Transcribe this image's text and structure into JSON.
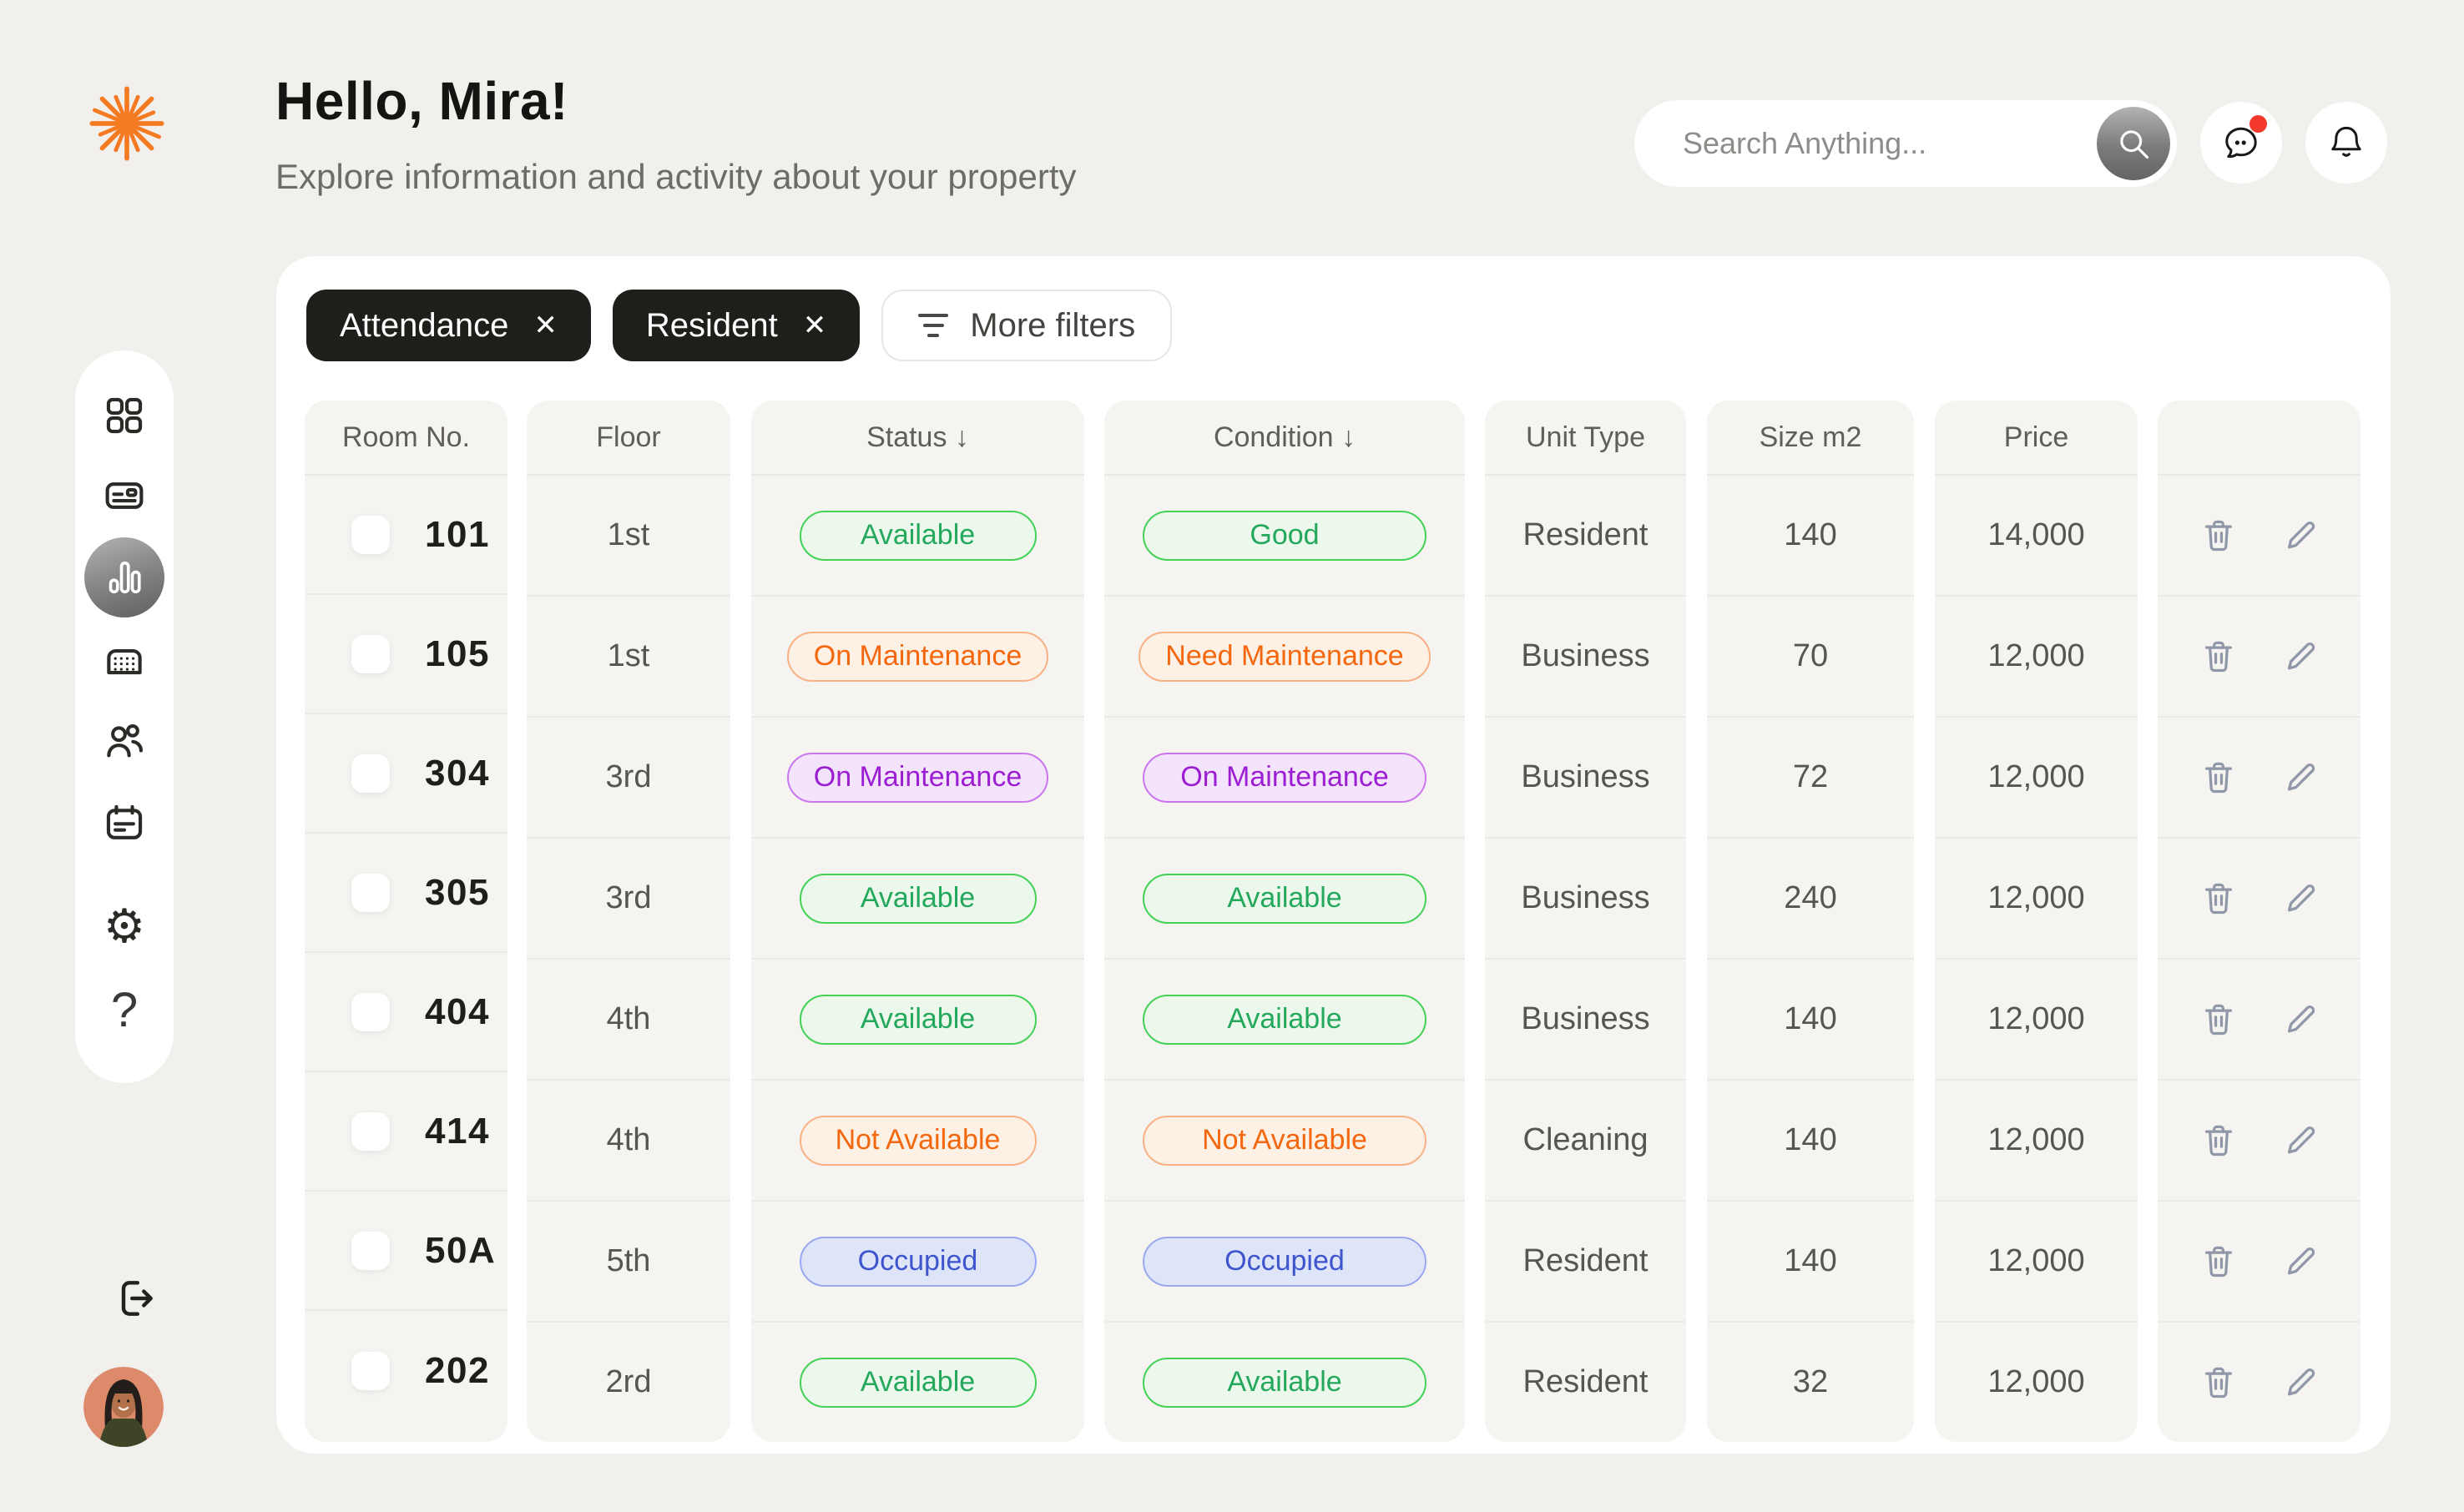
{
  "header": {
    "greeting": "Hello, Mira!",
    "subtitle": "Explore information and activity about your property",
    "search_placeholder": "Search Anything..."
  },
  "filters": {
    "chips": [
      {
        "label": "Attendance"
      },
      {
        "label": "Resident"
      }
    ],
    "more_filters_label": "More filters"
  },
  "icons": {
    "close": "✕",
    "gear": "⚙",
    "help": "?"
  },
  "table": {
    "sort_glyph": "↓",
    "headers": [
      {
        "label": "Room No.",
        "sorted": false
      },
      {
        "label": "Floor",
        "sorted": false
      },
      {
        "label": "Status",
        "sorted": true
      },
      {
        "label": "Condition",
        "sorted": true
      },
      {
        "label": "Unit Type",
        "sorted": false
      },
      {
        "label": "Size m2",
        "sorted": false
      },
      {
        "label": "Price",
        "sorted": false
      },
      {
        "label": "",
        "sorted": false
      }
    ],
    "row_actions": [
      {
        "icon": "trash-icon"
      },
      {
        "icon": "pencil-icon"
      }
    ],
    "rows": [
      {
        "room": "101",
        "floor": "1st",
        "status": {
          "label": "Available",
          "color": "green"
        },
        "condition": {
          "label": "Good",
          "color": "green"
        },
        "unit_type": "Resident",
        "size": "140",
        "price": "14,000"
      },
      {
        "room": "105",
        "floor": "1st",
        "status": {
          "label": "On Maintenance",
          "color": "orange"
        },
        "condition": {
          "label": "Need Maintenance",
          "color": "orange"
        },
        "unit_type": "Business",
        "size": "70",
        "price": "12,000"
      },
      {
        "room": "304",
        "floor": "3rd",
        "status": {
          "label": "On Maintenance",
          "color": "purple"
        },
        "condition": {
          "label": "On Maintenance",
          "color": "purple"
        },
        "unit_type": "Business",
        "size": "72",
        "price": "12,000"
      },
      {
        "room": "305",
        "floor": "3rd",
        "status": {
          "label": "Available",
          "color": "green"
        },
        "condition": {
          "label": "Available",
          "color": "green"
        },
        "unit_type": "Business",
        "size": "240",
        "price": "12,000"
      },
      {
        "room": "404",
        "floor": "4th",
        "status": {
          "label": "Available",
          "color": "green"
        },
        "condition": {
          "label": "Available",
          "color": "green"
        },
        "unit_type": "Business",
        "size": "140",
        "price": "12,000"
      },
      {
        "room": "414",
        "floor": "4th",
        "status": {
          "label": "Not Available",
          "color": "orange"
        },
        "condition": {
          "label": "Not Available",
          "color": "orange"
        },
        "unit_type": "Cleaning",
        "size": "140",
        "price": "12,000"
      },
      {
        "room": "50A",
        "floor": "5th",
        "status": {
          "label": "Occupied",
          "color": "blue"
        },
        "condition": {
          "label": "Occupied",
          "color": "blue"
        },
        "unit_type": "Resident",
        "size": "140",
        "price": "12,000"
      },
      {
        "room": "202",
        "floor": "2rd",
        "status": {
          "label": "Available",
          "color": "green"
        },
        "condition": {
          "label": "Available",
          "color": "green"
        },
        "unit_type": "Resident",
        "size": "32",
        "price": "12,000"
      }
    ]
  },
  "badge_styles": {
    "green": {
      "text": "#23a85c",
      "border": "#43d156",
      "bg": "#edf8ec"
    },
    "orange": {
      "text": "#f4670e",
      "border": "#f8b184",
      "bg": "#fdf0e4"
    },
    "purple": {
      "text": "#9c1ed2",
      "border": "#cb76ee",
      "bg": "#f4e4fb"
    },
    "blue": {
      "text": "#3e55cd",
      "border": "#9aa9ef",
      "bg": "#dee5f9"
    }
  },
  "colors": {
    "page_bg": "#f1f0ed",
    "card_bg": "#ffffff",
    "column_bg": "#f5f4f1",
    "chip_bg": "#201e1b",
    "accent_orange": "#f57b22",
    "notification_red": "#f2392c"
  }
}
